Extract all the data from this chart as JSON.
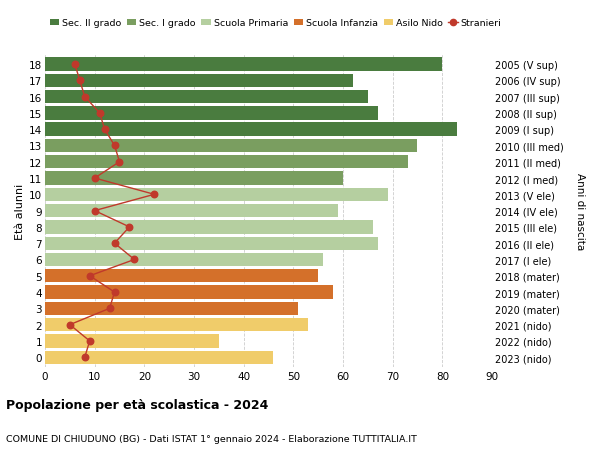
{
  "ages": [
    18,
    17,
    16,
    15,
    14,
    13,
    12,
    11,
    10,
    9,
    8,
    7,
    6,
    5,
    4,
    3,
    2,
    1,
    0
  ],
  "bar_values": [
    80,
    62,
    65,
    67,
    83,
    75,
    73,
    60,
    69,
    59,
    66,
    67,
    56,
    55,
    58,
    51,
    53,
    35,
    46
  ],
  "stranieri": [
    6,
    7,
    8,
    11,
    12,
    14,
    15,
    10,
    22,
    10,
    17,
    14,
    18,
    9,
    14,
    13,
    5,
    9,
    8
  ],
  "right_labels": [
    "2005 (V sup)",
    "2006 (IV sup)",
    "2007 (III sup)",
    "2008 (II sup)",
    "2009 (I sup)",
    "2010 (III med)",
    "2011 (II med)",
    "2012 (I med)",
    "2013 (V ele)",
    "2014 (IV ele)",
    "2015 (III ele)",
    "2016 (II ele)",
    "2017 (I ele)",
    "2018 (mater)",
    "2019 (mater)",
    "2020 (mater)",
    "2021 (nido)",
    "2022 (nido)",
    "2023 (nido)"
  ],
  "bar_colors": [
    "#4a7c3f",
    "#4a7c3f",
    "#4a7c3f",
    "#4a7c3f",
    "#4a7c3f",
    "#7a9e60",
    "#7a9e60",
    "#7a9e60",
    "#b5cfa0",
    "#b5cfa0",
    "#b5cfa0",
    "#b5cfa0",
    "#b5cfa0",
    "#d4702a",
    "#d4702a",
    "#d4702a",
    "#f0cc6a",
    "#f0cc6a",
    "#f0cc6a"
  ],
  "legend_colors": [
    "#4a7c3f",
    "#7a9e60",
    "#b5cfa0",
    "#d4702a",
    "#f0cc6a",
    "#c0392b"
  ],
  "legend_labels": [
    "Sec. II grado",
    "Sec. I grado",
    "Scuola Primaria",
    "Scuola Infanzia",
    "Asilo Nido",
    "Stranieri"
  ],
  "stranieri_color": "#c0392b",
  "title": "Popolazione per età scolastica - 2024",
  "subtitle": "COMUNE DI CHIUDUNO (BG) - Dati ISTAT 1° gennaio 2024 - Elaborazione TUTTITALIA.IT",
  "ylabel": "Età alunni",
  "right_ylabel": "Anni di nascita",
  "xlim": [
    0,
    90
  ],
  "xticks": [
    0,
    10,
    20,
    30,
    40,
    50,
    60,
    70,
    80,
    90
  ],
  "bg_color": "#ffffff",
  "grid_color": "#cccccc"
}
